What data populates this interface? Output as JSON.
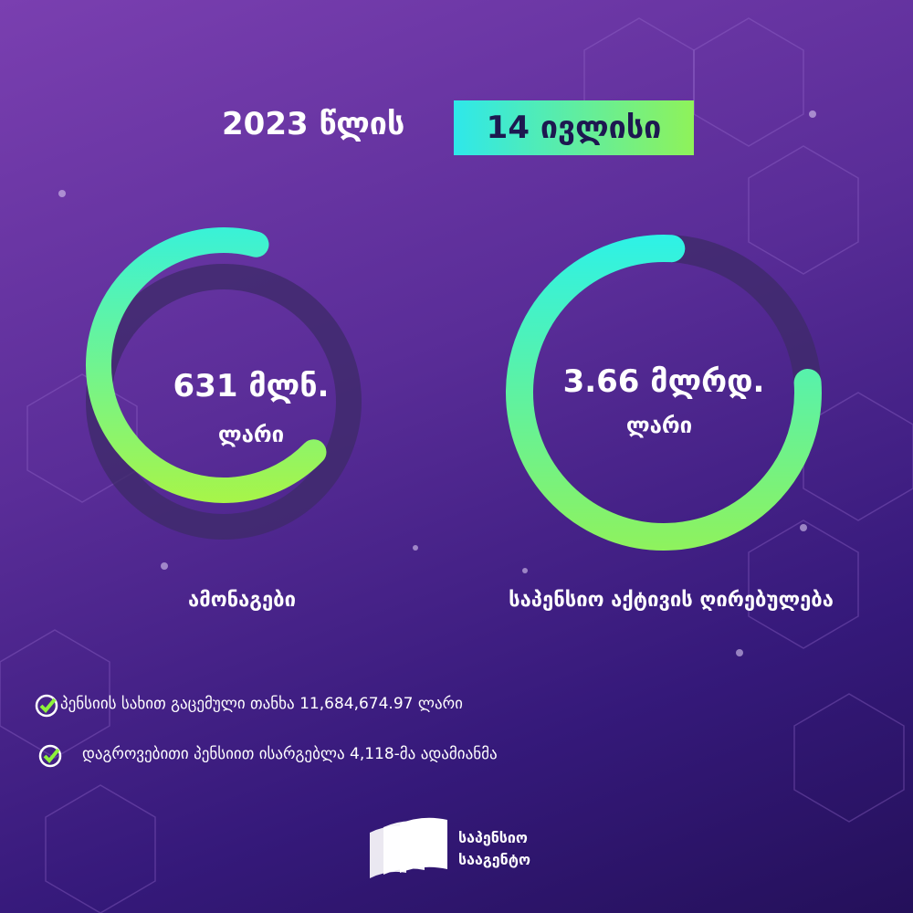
{
  "title": {
    "year_text": "2023 წლის",
    "date_highlight": "14 ივლისი"
  },
  "rings": [
    {
      "amount": "631 მლნ.",
      "currency": "ლარი",
      "label": "ამონაგები"
    },
    {
      "amount": "3.66 მლრდ.",
      "currency": "ლარი",
      "label": "საპენსიო აქტივის ღირებულება"
    }
  ],
  "bullets": [
    "პენსიის სახით გაცემული თანხა 11,684,674.97 ლარი",
    "დაგროვებითი პენსიით ისარგებლა 4,118-მა ადამიანმა"
  ],
  "logo": {
    "line1": "საპენსიო",
    "line2": "სააგენტო"
  }
}
